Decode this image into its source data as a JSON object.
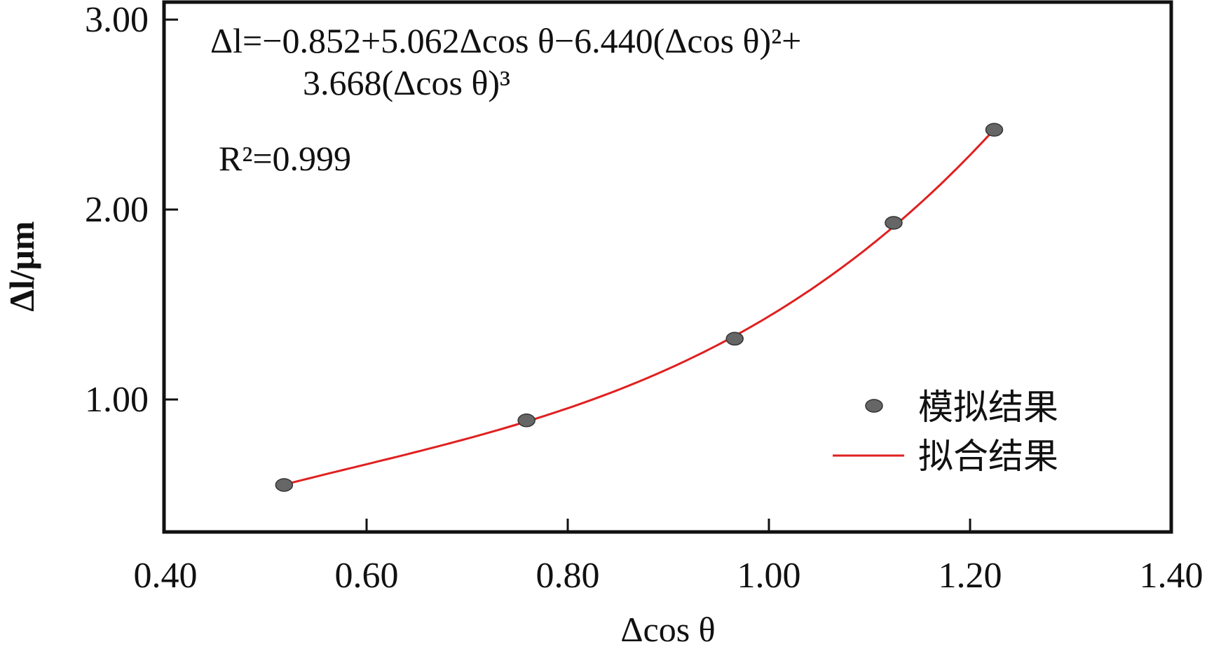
{
  "chart_data": {
    "type": "scatter",
    "title": "",
    "xlabel": "Δcos θ",
    "ylabel": "Δl/μm",
    "xlim": [
      0.4,
      1.4
    ],
    "ylim": [
      0.3,
      3.1
    ],
    "x_ticks": [
      "0.40",
      "0.60",
      "0.80",
      "1.00",
      "1.20",
      "1.40"
    ],
    "x_tick_values": [
      0.4,
      0.6,
      0.8,
      1.0,
      1.2,
      1.4
    ],
    "y_ticks": [
      "1.00",
      "2.00",
      "3.00"
    ],
    "y_tick_values": [
      1.0,
      2.0,
      3.0
    ],
    "grid": false,
    "legend_position": "bottom-right",
    "series": [
      {
        "name": "模拟结果",
        "kind": "points",
        "color": "#555555",
        "x": [
          0.518,
          0.759,
          0.966,
          1.124,
          1.224
        ],
        "y": [
          0.55,
          0.89,
          1.32,
          1.93,
          2.42
        ]
      },
      {
        "name": "拟合结果",
        "kind": "fit-curve",
        "color": "#e02020",
        "coefficients": [
          -0.852,
          5.062,
          -6.44,
          3.668
        ],
        "x_range": [
          0.518,
          1.224
        ]
      }
    ],
    "annotations": {
      "equation_line1": "Δl=−0.852+5.062Δcos θ−6.440(Δcos θ)²+",
      "equation_line2": "3.668(Δcos θ)³",
      "r_squared": "R²=0.999"
    }
  }
}
